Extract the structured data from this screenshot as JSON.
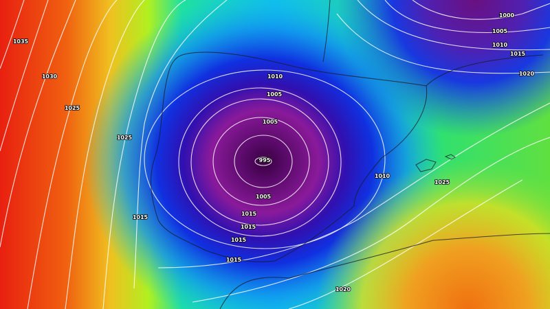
{
  "map": {
    "type": "surface pressure isobar map",
    "colors": {
      "low": "#3a0040",
      "purple": "#8a1a9a",
      "blue": "#1030e0",
      "cyan": "#10c8e0",
      "green": "#40e040",
      "yellow": "#f0e020",
      "orange": "#f08010",
      "red": "#e82010"
    },
    "labels": [
      {
        "text": "1035"
      },
      {
        "text": "1030"
      },
      {
        "text": "1025"
      },
      {
        "text": "1025"
      },
      {
        "text": "1015"
      },
      {
        "text": "1010"
      },
      {
        "text": "1005"
      },
      {
        "text": "1005"
      },
      {
        "text": "995"
      },
      {
        "text": "1005"
      },
      {
        "text": "1015"
      },
      {
        "text": "1015"
      },
      {
        "text": "1015"
      },
      {
        "text": "1015"
      },
      {
        "text": "1010"
      },
      {
        "text": "1025"
      },
      {
        "text": "1020"
      },
      {
        "text": "1000"
      },
      {
        "text": "1005"
      },
      {
        "text": "1010"
      },
      {
        "text": "1015"
      },
      {
        "text": "1020"
      }
    ]
  }
}
